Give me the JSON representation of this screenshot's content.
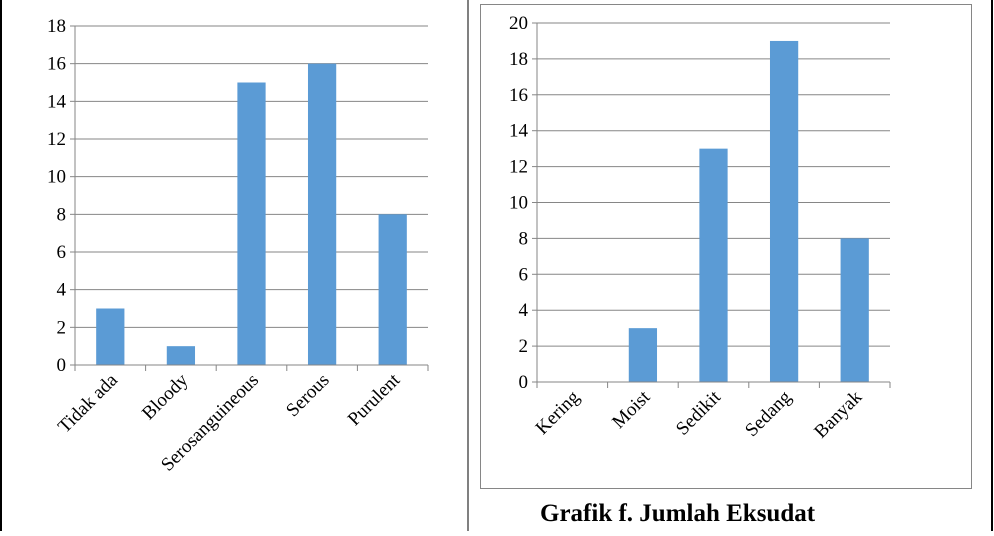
{
  "caption": "Grafik f. Jumlah Eksudat",
  "colors": {
    "bar": "#5b9bd5",
    "axis": "#868686",
    "grid": "#868686",
    "border": "#000000",
    "text": "#000000"
  },
  "chart_data": [
    {
      "type": "bar",
      "categories": [
        "Tidak ada",
        "Bloody",
        "Serosanguineous",
        "Serous",
        "Purulent"
      ],
      "values": [
        3,
        1,
        15,
        16,
        8
      ],
      "ylim": [
        0,
        18
      ],
      "yticks": [
        "0",
        "2",
        "4",
        "6",
        "8",
        "10",
        "12",
        "14",
        "16",
        "18"
      ],
      "grid": true
    },
    {
      "type": "bar",
      "categories": [
        "Kering",
        "Moist",
        "Sedikit",
        "Sedang",
        "Banyak"
      ],
      "values": [
        0,
        3,
        13,
        19,
        8
      ],
      "ylim": [
        0,
        20
      ],
      "yticks": [
        "0",
        "2",
        "4",
        "6",
        "8",
        "10",
        "12",
        "14",
        "16",
        "18",
        "20"
      ],
      "grid": true
    }
  ]
}
